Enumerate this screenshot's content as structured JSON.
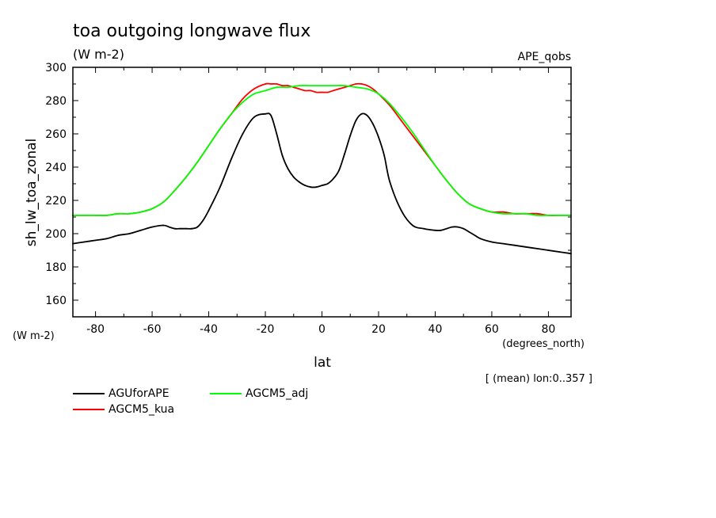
{
  "chart_data": {
    "type": "line",
    "title": "toa outgoing longwave flux",
    "subtitle": "(W m-2)",
    "dataset_label": "APE_qobs",
    "ylabel": "sh_lw_toa_zonal",
    "yunits": "(W m-2)",
    "xlabel": "lat",
    "xunits": "(degrees_north)",
    "footnote": "[ (mean) lon:0..357 ]",
    "xlim": [
      -88,
      88
    ],
    "ylim": [
      150,
      300
    ],
    "xticks": [
      -80,
      -60,
      -40,
      -20,
      0,
      20,
      40,
      60,
      80
    ],
    "yticks": [
      160,
      180,
      200,
      220,
      240,
      260,
      280,
      300
    ],
    "grid": false,
    "legend_position": "bottom-left",
    "series": [
      {
        "name": "AGUforAPE",
        "color": "#000000",
        "x": [
          -88,
          -84,
          -80,
          -76,
          -72,
          -68,
          -64,
          -60,
          -56,
          -54,
          -52,
          -50,
          -48,
          -46,
          -44,
          -42,
          -40,
          -36,
          -32,
          -28,
          -24,
          -20,
          -18,
          -16,
          -14,
          -12,
          -10,
          -8,
          -6,
          -4,
          -2,
          0,
          2,
          4,
          6,
          8,
          10,
          12,
          14,
          16,
          18,
          20,
          22,
          24,
          28,
          32,
          36,
          40,
          42,
          44,
          46,
          48,
          50,
          52,
          54,
          56,
          60,
          64,
          68,
          72,
          76,
          80,
          84,
          88
        ],
        "values": [
          194,
          195,
          196,
          197,
          199,
          200,
          202,
          204,
          205,
          204,
          203,
          203,
          203,
          203,
          204,
          208,
          214,
          228,
          245,
          260,
          270,
          272,
          271,
          260,
          247,
          239,
          234,
          231,
          229,
          228,
          228,
          229,
          230,
          233,
          238,
          248,
          259,
          268,
          272,
          271,
          266,
          258,
          247,
          231,
          214,
          205,
          203,
          202,
          202,
          203,
          204,
          204,
          203,
          201,
          199,
          197,
          195,
          194,
          193,
          192,
          191,
          190,
          189,
          188
        ]
      },
      {
        "name": "AGCM5_kua",
        "color": "#ff0000",
        "x": [
          -88,
          -84,
          -80,
          -76,
          -72,
          -68,
          -64,
          -60,
          -56,
          -52,
          -48,
          -44,
          -40,
          -36,
          -32,
          -28,
          -24,
          -20,
          -18,
          -16,
          -14,
          -12,
          -10,
          -8,
          -6,
          -4,
          -2,
          0,
          2,
          4,
          6,
          8,
          10,
          12,
          14,
          16,
          18,
          20,
          24,
          28,
          32,
          36,
          40,
          44,
          48,
          52,
          56,
          60,
          64,
          68,
          72,
          76,
          80,
          84,
          88
        ],
        "values": [
          211,
          211,
          211,
          211,
          212,
          212,
          213,
          215,
          219,
          226,
          234,
          243,
          253,
          263,
          272,
          281,
          287,
          290,
          290,
          290,
          289,
          289,
          288,
          287,
          286,
          286,
          285,
          285,
          285,
          286,
          287,
          288,
          289,
          290,
          290,
          289,
          287,
          284,
          277,
          268,
          259,
          250,
          241,
          232,
          224,
          218,
          215,
          213,
          213,
          212,
          212,
          212,
          211,
          211,
          211
        ]
      },
      {
        "name": "AGCM5_adj",
        "color": "#00ff00",
        "x": [
          -88,
          -84,
          -80,
          -76,
          -72,
          -68,
          -64,
          -60,
          -56,
          -52,
          -48,
          -44,
          -40,
          -36,
          -32,
          -28,
          -24,
          -20,
          -16,
          -12,
          -8,
          -4,
          0,
          4,
          8,
          12,
          16,
          20,
          24,
          28,
          32,
          36,
          40,
          44,
          48,
          52,
          56,
          60,
          64,
          68,
          72,
          76,
          80,
          84,
          88
        ],
        "values": [
          211,
          211,
          211,
          211,
          212,
          212,
          213,
          215,
          219,
          226,
          234,
          243,
          253,
          263,
          272,
          279,
          284,
          286,
          288,
          288,
          289,
          289,
          289,
          289,
          289,
          288,
          287,
          284,
          278,
          270,
          261,
          251,
          241,
          232,
          224,
          218,
          215,
          213,
          212,
          212,
          212,
          211,
          211,
          211,
          211
        ]
      }
    ]
  }
}
